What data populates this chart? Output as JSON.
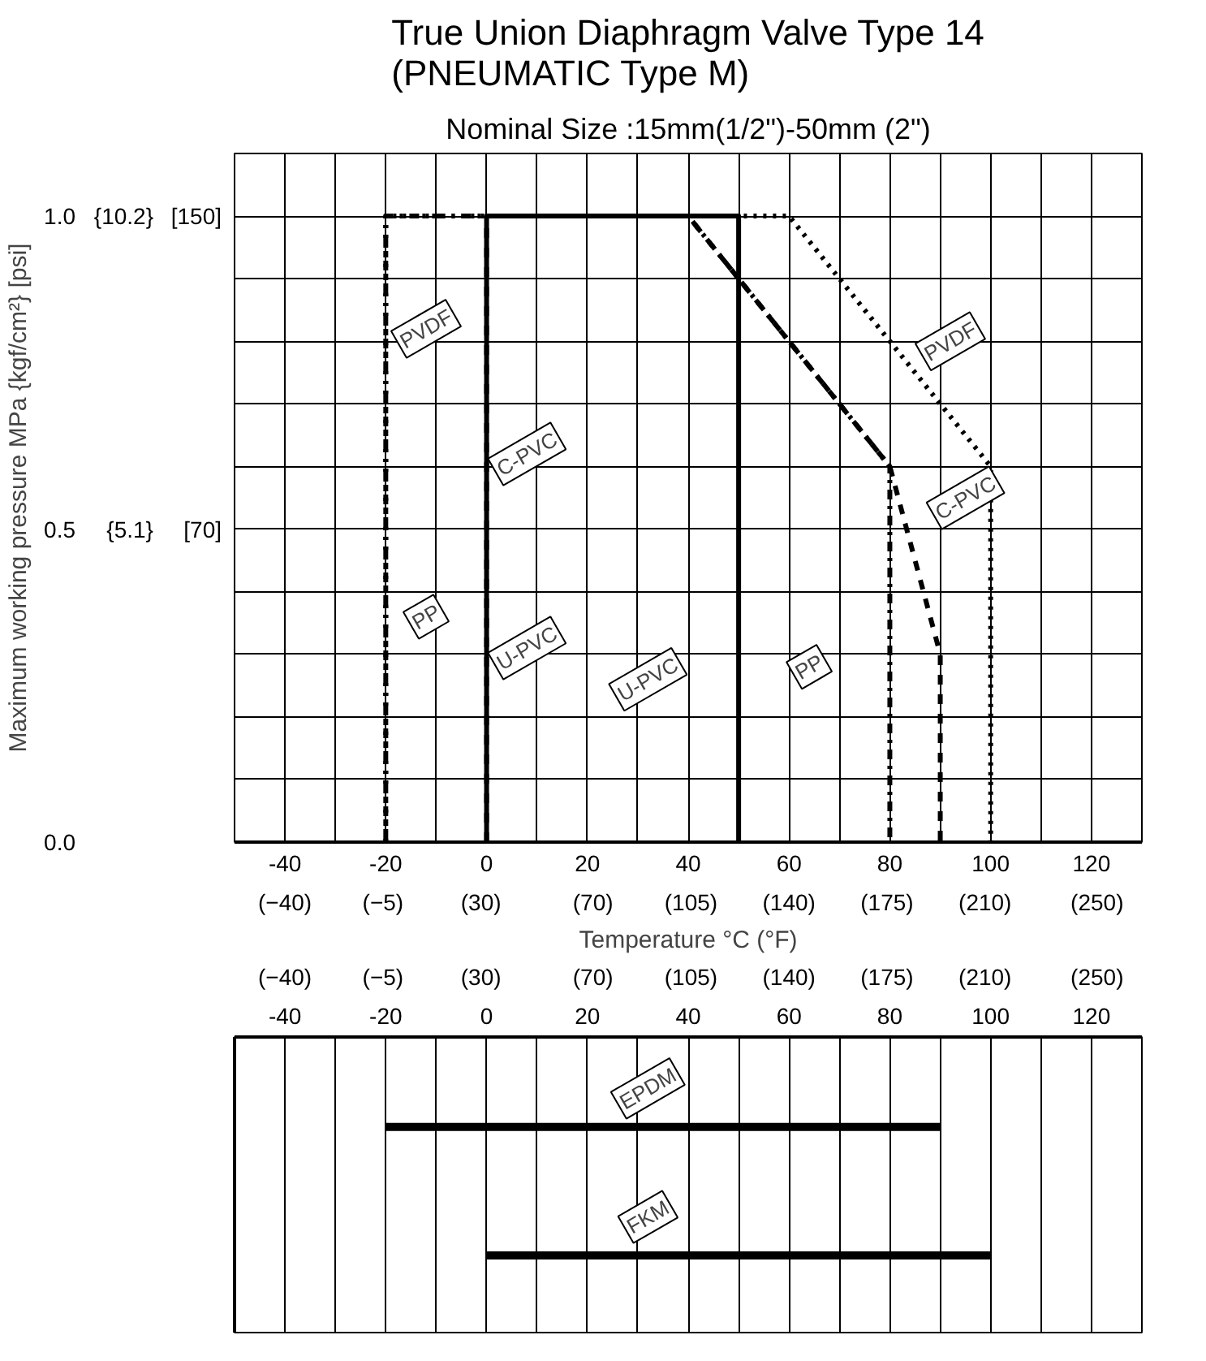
{
  "chart_data": [
    {
      "type": "line",
      "title": "True Union Diaphragm Valve Type 14\n(PNEUMATIC  Type M)",
      "subtitle": "Nominal Size :15mm(1/2\")-50mm (2\")",
      "xlabel": "Temperature °C (°F)",
      "ylabel": "Maximum working pressure MPa {kgf/cm²} [psi]",
      "xlim": [
        -50,
        130
      ],
      "ylim": [
        0,
        1.1
      ],
      "xticks": [
        {
          "value": -50,
          "label": null
        },
        -40,
        {
          "value": -30,
          "label": null
        },
        -20,
        {
          "value": -10,
          "label": null
        },
        0,
        {
          "value": 10,
          "label": null
        },
        20,
        {
          "value": 30,
          "label": null
        },
        40,
        {
          "value": 50,
          "label": null
        },
        60,
        {
          "value": 70,
          "label": null
        },
        80,
        {
          "value": 90,
          "label": null
        },
        100,
        {
          "value": 110,
          "label": null
        },
        120,
        {
          "value": 130,
          "label": null
        }
      ],
      "x2lim": [
        -58,
        266
      ],
      "x2ticks": [
        {
          "value": -40,
          "label": "(−40)"
        },
        {
          "value": -5,
          "label": "(−5)"
        },
        {
          "value": 30,
          "label": "(30)"
        },
        {
          "value": 70,
          "label": "(70)"
        },
        {
          "value": 105,
          "label": "(105)"
        },
        {
          "value": 140,
          "label": "(140)"
        },
        {
          "value": 175,
          "label": "(175)"
        },
        {
          "value": 210,
          "label": "(210)"
        },
        {
          "value": 250,
          "label": "(250)"
        }
      ],
      "yticks": [
        {
          "value": 0,
          "label": "0.0"
        },
        {
          "value": 0.1,
          "label": null
        },
        {
          "value": 0.2,
          "label": null
        },
        {
          "value": 0.3,
          "label": null
        },
        {
          "value": 0.4,
          "label": null
        },
        0.5,
        {
          "value": 0.6,
          "label": null
        },
        {
          "value": 0.7,
          "label": null
        },
        {
          "value": 0.8,
          "label": null
        },
        {
          "value": 0.9,
          "label": null
        },
        {
          "value": 1.0,
          "label": "1.0"
        },
        {
          "value": 1.1,
          "label": null
        }
      ],
      "y2lim": [
        0,
        11.22
      ],
      "y2ticks": [
        {
          "value": 5.1,
          "label": "{5.1}"
        },
        {
          "value": 10.2,
          "label": "{10.2}"
        }
      ],
      "y3lim": [
        -10,
        166
      ],
      "y3ticks": [
        {
          "value": 70,
          "label": "[70]"
        },
        {
          "value": 150,
          "label": "[150]"
        }
      ],
      "grid": true,
      "series": [
        {
          "name": "PVDF",
          "color": "#000000",
          "line_style": "dotted",
          "x": [
            -20,
            -20,
            60,
            100,
            100
          ],
          "values": [
            0,
            1.0,
            1.0,
            0.6,
            0
          ]
        },
        {
          "name": "C-PVC",
          "color": "#000000",
          "line_style": "dashed",
          "x": [
            0,
            0,
            40,
            80,
            90,
            90
          ],
          "values": [
            0,
            1.0,
            1.0,
            0.6,
            0.3,
            0
          ]
        },
        {
          "name": "PP",
          "color": "#000000",
          "line_style": "dashdot",
          "x": [
            -20,
            -20,
            40,
            80,
            80
          ],
          "values": [
            0,
            1.0,
            1.0,
            0.6,
            0
          ]
        },
        {
          "name": "U-PVC",
          "color": "#000000",
          "line_style": "solid",
          "x": [
            0,
            0,
            50,
            50
          ],
          "values": [
            0,
            1.0,
            1.0,
            0
          ]
        }
      ]
    },
    {
      "type": "bar",
      "orientation": "horizontal",
      "categories": [
        "EPDM",
        "FKM"
      ],
      "base": [
        -20,
        0
      ],
      "values": [
        110,
        100
      ],
      "color": "#000000",
      "xlim": [
        -50,
        130
      ],
      "xticks": [
        {
          "value": -50,
          "label": null
        },
        -40,
        {
          "value": -30,
          "label": null
        },
        -20,
        {
          "value": -10,
          "label": null
        },
        0,
        {
          "value": 10,
          "label": null
        },
        20,
        {
          "value": 30,
          "label": null
        },
        40,
        {
          "value": 50,
          "label": null
        },
        60,
        {
          "value": 70,
          "label": null
        },
        80,
        {
          "value": 90,
          "label": null
        },
        100,
        {
          "value": 110,
          "label": null
        },
        120,
        {
          "value": 130,
          "label": null
        }
      ],
      "x2lim": [
        -58,
        266
      ],
      "x2ticks": [
        {
          "value": -40,
          "label": "(−40)"
        },
        {
          "value": -5,
          "label": "(−5)"
        },
        {
          "value": 30,
          "label": "(30)"
        },
        {
          "value": 70,
          "label": "(70)"
        },
        {
          "value": 105,
          "label": "(105)"
        },
        {
          "value": 140,
          "label": "(140)"
        },
        {
          "value": 175,
          "label": "(175)"
        },
        {
          "value": 210,
          "label": "(210)"
        },
        {
          "value": 250,
          "label": "(250)"
        }
      ],
      "grid": "x",
      "tick_labels": "x"
    }
  ]
}
